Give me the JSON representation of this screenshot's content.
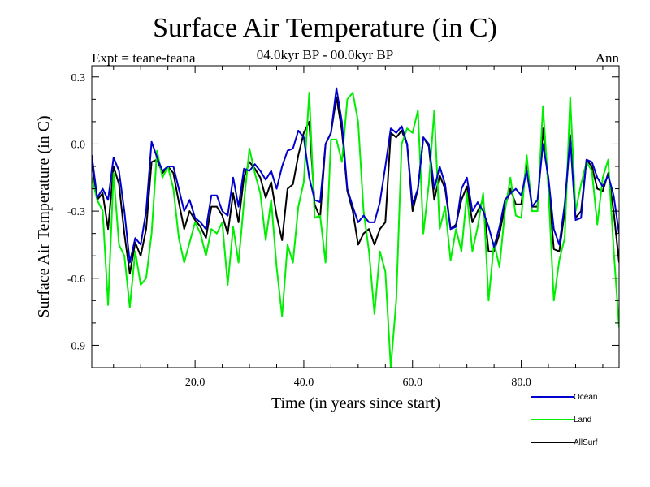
{
  "chart_data": {
    "type": "line",
    "title": "Surface Air Temperature (in C)",
    "subtitle": "04.0kyr BP - 00.0kyr BP",
    "experiment": "Expt = teane-teana",
    "period": "Ann",
    "xlabel": "Time (in years since start)",
    "ylabel": "Surface Air Temperature (in C)",
    "xlim": [
      1,
      98
    ],
    "ylim": [
      -1.0,
      0.35
    ],
    "xticks": [
      20.0,
      40.0,
      60.0,
      80.0
    ],
    "xtick_labels": [
      "20.0",
      "40.0",
      "60.0",
      "80.0"
    ],
    "yticks": [
      0.3,
      0.0,
      -0.3,
      -0.6,
      -0.9
    ],
    "ytick_labels": [
      "0.3",
      "0.0",
      "-0.3",
      "-0.6",
      "-0.9"
    ],
    "reference_line": 0.0,
    "x": [
      1,
      2,
      3,
      4,
      5,
      6,
      7,
      8,
      9,
      10,
      11,
      12,
      13,
      14,
      15,
      16,
      17,
      18,
      19,
      20,
      21,
      22,
      23,
      24,
      25,
      26,
      27,
      28,
      29,
      30,
      31,
      32,
      33,
      34,
      35,
      36,
      37,
      38,
      39,
      40,
      41,
      42,
      43,
      44,
      45,
      46,
      47,
      48,
      49,
      50,
      51,
      52,
      53,
      54,
      55,
      56,
      57,
      58,
      59,
      60,
      61,
      62,
      63,
      64,
      65,
      66,
      67,
      68,
      69,
      70,
      71,
      72,
      73,
      74,
      75,
      76,
      77,
      78,
      79,
      80,
      81,
      82,
      83,
      84,
      85,
      86,
      87,
      88,
      89,
      90,
      91,
      92,
      93,
      94,
      95,
      96,
      97,
      98
    ],
    "series": [
      {
        "name": "Ocean",
        "color": "#0000cc",
        "values": [
          -0.05,
          -0.24,
          -0.2,
          -0.25,
          -0.06,
          -0.12,
          -0.3,
          -0.53,
          -0.42,
          -0.45,
          -0.3,
          0.01,
          -0.06,
          -0.12,
          -0.1,
          -0.1,
          -0.2,
          -0.3,
          -0.25,
          -0.33,
          -0.35,
          -0.38,
          -0.23,
          -0.23,
          -0.3,
          -0.32,
          -0.15,
          -0.28,
          -0.11,
          -0.12,
          -0.09,
          -0.12,
          -0.16,
          -0.12,
          -0.2,
          -0.1,
          -0.03,
          -0.02,
          0.06,
          0.03,
          -0.15,
          -0.25,
          -0.26,
          0.0,
          0.05,
          0.25,
          0.1,
          -0.2,
          -0.28,
          -0.35,
          -0.32,
          -0.35,
          -0.35,
          -0.26,
          -0.1,
          0.07,
          0.05,
          0.08,
          0.0,
          -0.27,
          -0.2,
          0.03,
          0.0,
          -0.2,
          -0.1,
          -0.18,
          -0.38,
          -0.37,
          -0.2,
          -0.15,
          -0.3,
          -0.26,
          -0.3,
          -0.37,
          -0.46,
          -0.37,
          -0.25,
          -0.22,
          -0.2,
          -0.23,
          -0.12,
          -0.28,
          -0.25,
          0.0,
          -0.15,
          -0.38,
          -0.45,
          -0.27,
          0.03,
          -0.34,
          -0.33,
          -0.07,
          -0.08,
          -0.15,
          -0.19,
          -0.14,
          -0.23,
          -0.4
        ]
      },
      {
        "name": "Land",
        "color": "#00ee00",
        "values": [
          -0.15,
          -0.25,
          -0.3,
          -0.72,
          -0.13,
          -0.45,
          -0.5,
          -0.73,
          -0.48,
          -0.63,
          -0.6,
          -0.4,
          -0.03,
          -0.15,
          -0.1,
          -0.2,
          -0.42,
          -0.53,
          -0.44,
          -0.35,
          -0.4,
          -0.5,
          -0.38,
          -0.4,
          -0.35,
          -0.63,
          -0.37,
          -0.53,
          -0.26,
          -0.02,
          -0.13,
          -0.22,
          -0.43,
          -0.25,
          -0.55,
          -0.77,
          -0.45,
          -0.53,
          -0.28,
          -0.17,
          0.23,
          -0.33,
          -0.32,
          -0.53,
          0.02,
          0.02,
          -0.08,
          0.2,
          0.23,
          0.1,
          -0.3,
          -0.48,
          -0.76,
          -0.48,
          -0.57,
          -1.0,
          -0.7,
          0.0,
          0.07,
          0.05,
          0.15,
          -0.4,
          -0.18,
          0.15,
          -0.38,
          -0.28,
          -0.52,
          -0.38,
          -0.48,
          -0.22,
          -0.48,
          -0.37,
          -0.22,
          -0.7,
          -0.44,
          -0.55,
          -0.3,
          -0.15,
          -0.32,
          -0.33,
          -0.05,
          -0.3,
          -0.3,
          0.17,
          -0.2,
          -0.7,
          -0.52,
          -0.42,
          0.21,
          -0.3,
          -0.18,
          -0.08,
          -0.12,
          -0.36,
          -0.15,
          -0.07,
          -0.47,
          -0.82
        ]
      },
      {
        "name": "AllSurf",
        "color": "#000000",
        "values": [
          -0.08,
          -0.25,
          -0.22,
          -0.38,
          -0.1,
          -0.18,
          -0.4,
          -0.58,
          -0.44,
          -0.5,
          -0.38,
          -0.08,
          -0.07,
          -0.13,
          -0.1,
          -0.13,
          -0.26,
          -0.38,
          -0.3,
          -0.34,
          -0.37,
          -0.42,
          -0.28,
          -0.28,
          -0.32,
          -0.4,
          -0.22,
          -0.35,
          -0.15,
          -0.08,
          -0.11,
          -0.15,
          -0.24,
          -0.17,
          -0.32,
          -0.43,
          -0.2,
          -0.18,
          -0.05,
          0.05,
          0.1,
          -0.27,
          -0.33,
          0.0,
          0.05,
          0.21,
          0.06,
          -0.21,
          -0.3,
          -0.45,
          -0.4,
          -0.38,
          -0.45,
          -0.38,
          -0.35,
          0.05,
          0.03,
          0.06,
          0.0,
          -0.3,
          -0.2,
          0.03,
          -0.01,
          -0.25,
          -0.14,
          -0.2,
          -0.38,
          -0.36,
          -0.25,
          -0.19,
          -0.35,
          -0.3,
          -0.25,
          -0.48,
          -0.48,
          -0.4,
          -0.28,
          -0.2,
          -0.27,
          -0.27,
          -0.08,
          -0.28,
          -0.28,
          0.07,
          -0.18,
          -0.47,
          -0.48,
          -0.3,
          0.04,
          -0.33,
          -0.3,
          -0.07,
          -0.1,
          -0.2,
          -0.21,
          -0.13,
          -0.3,
          -0.53
        ]
      }
    ],
    "legend": [
      {
        "label": "Ocean",
        "color": "#0000cc"
      },
      {
        "label": "Land",
        "color": "#00ee00"
      },
      {
        "label": "AllSurf",
        "color": "#000000"
      }
    ]
  }
}
